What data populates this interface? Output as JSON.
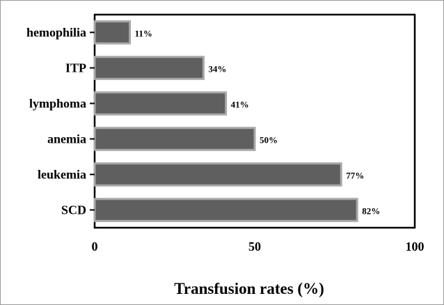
{
  "chart_data": {
    "type": "bar",
    "orientation": "horizontal",
    "categories": [
      "hemophilia",
      "ITP",
      "lymphoma",
      "anemia",
      "leukemia",
      "SCD"
    ],
    "values": [
      11,
      34,
      41,
      50,
      77,
      82
    ],
    "data_labels": [
      "11%",
      "34%",
      "41%",
      "50%",
      "77%",
      "82%"
    ],
    "title": "",
    "xlabel": "Transfusion rates (%)",
    "ylabel": "",
    "xlim": [
      0,
      100
    ],
    "xticks": [
      0,
      50,
      100
    ],
    "xtick_labels": [
      "0",
      "50",
      "100"
    ],
    "grid": false,
    "legend": "none",
    "colors": {
      "bar_fill": "#5f5f5f",
      "bar_stroke": "#a8a8a8",
      "axis": "#000000"
    }
  }
}
